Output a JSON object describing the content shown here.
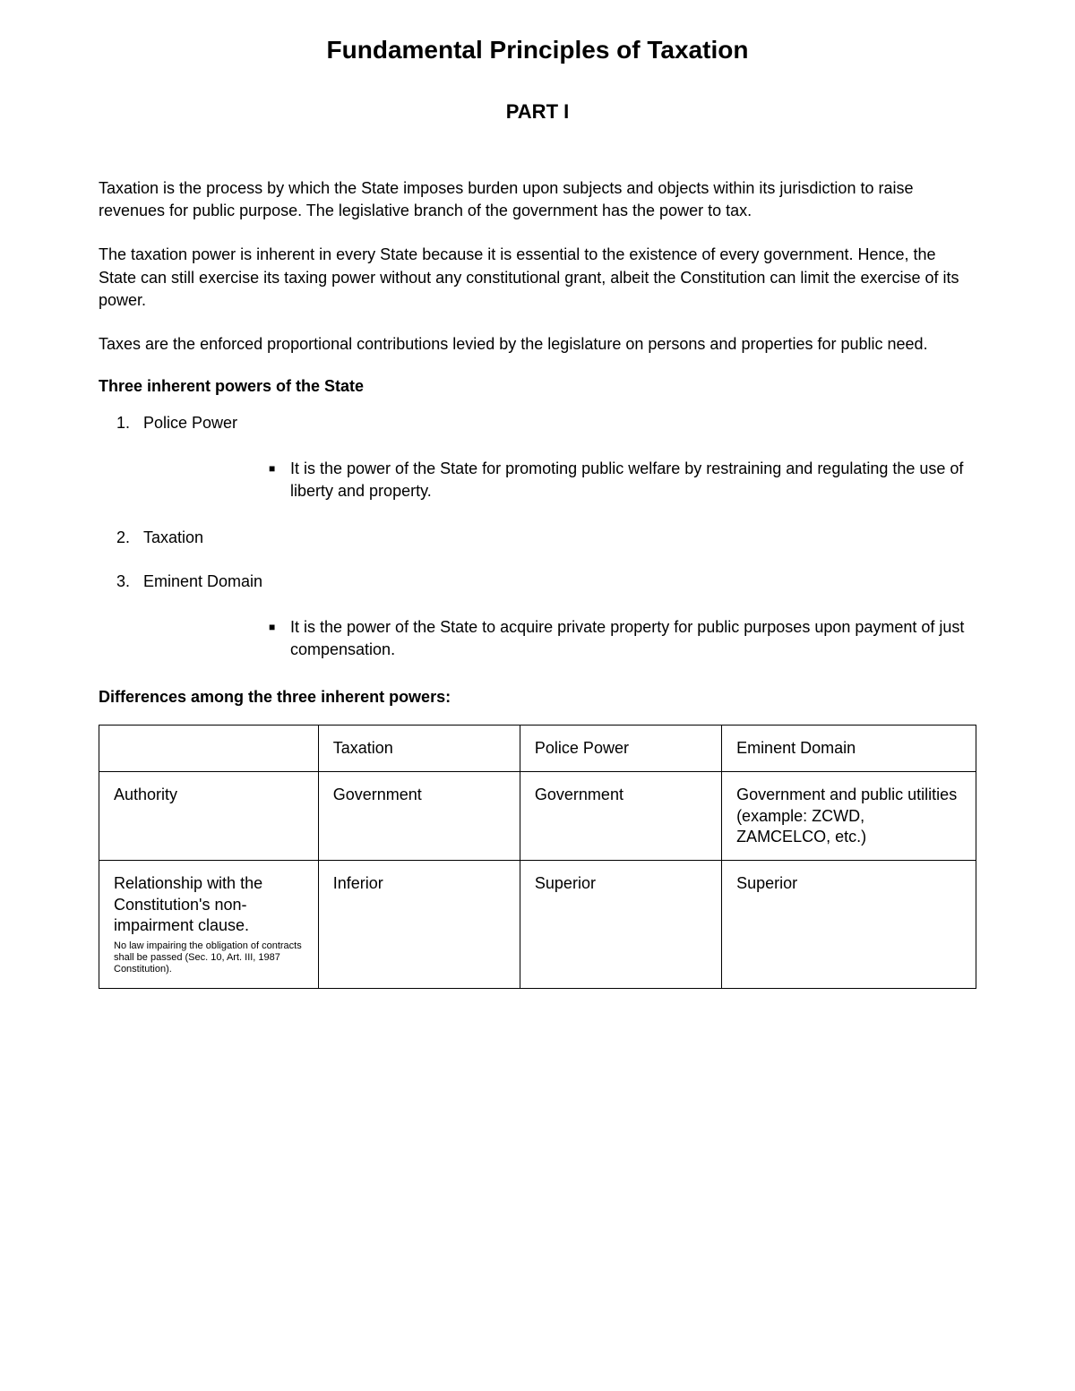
{
  "title": "Fundamental Principles of Taxation",
  "subtitle": "PART I",
  "paragraphs": {
    "p1": "Taxation is the process by which the State imposes burden upon subjects and objects within its jurisdiction to raise revenues for public purpose. The legislative branch of the government has the power to tax.",
    "p2": "The taxation power is inherent in every State because it is essential to the existence of every government. Hence, the State can still exercise its taxing power without any constitutional grant, albeit the Constitution can limit the exercise of its power.",
    "p3": "Taxes are the enforced proportional contributions levied by the legislature on persons and properties for public need."
  },
  "section1": {
    "heading": "Three inherent powers of the State",
    "items": {
      "item1": {
        "num": "1.",
        "label": "Police Power",
        "sub": "It is the power of the State for promoting public welfare by restraining and regulating the use of liberty and property."
      },
      "item2": {
        "num": "2.",
        "label": "Taxation"
      },
      "item3": {
        "num": "3.",
        "label": "Eminent Domain",
        "sub": "It is the power of the State to acquire private property for public purposes upon payment of just compensation."
      }
    }
  },
  "section2": {
    "heading": "Differences among the three inherent powers:",
    "table": {
      "header": {
        "c1": "",
        "c2": "Taxation",
        "c3": "Police Power",
        "c4": "Eminent Domain"
      },
      "row1": {
        "c1": "Authority",
        "c2": "Government",
        "c3": "Government",
        "c4": "Government and public utilities\n(example: ZCWD, ZAMCELCO, etc.)"
      },
      "row2": {
        "c1_main": "Relationship with the Constitution's non-impairment clause.",
        "c1_footnote": "No law impairing the obligation of contracts shall be passed (Sec. 10, Art. III, 1987 Constitution).",
        "c2": "Inferior",
        "c3": "Superior",
        "c4": "Superior"
      }
    }
  }
}
